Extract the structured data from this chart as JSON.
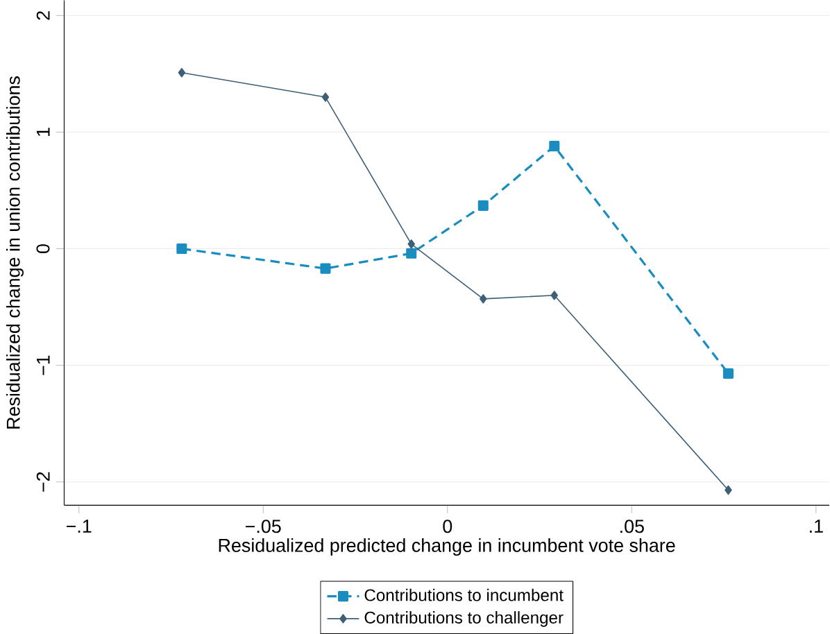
{
  "chart_data": {
    "type": "line",
    "xlabel": "Residualized predicted change in incumbent vote share",
    "ylabel": "Residualized change in union contributions",
    "x": [
      -0.0721,
      -0.0331,
      -0.0098,
      0.0097,
      0.029,
      0.0762
    ],
    "series": [
      {
        "name": "Contributions to incumbent",
        "color": "#1a8dc0",
        "line_style": "dashed",
        "marker": "square",
        "values": [
          0.0,
          -0.17,
          -0.04,
          0.37,
          0.88,
          -1.07
        ]
      },
      {
        "name": "Contributions to challenger",
        "color": "#3e5f78",
        "line_style": "solid",
        "marker": "diamond",
        "values": [
          1.51,
          1.3,
          0.04,
          -0.43,
          -0.4,
          -2.07
        ]
      }
    ],
    "xlim": [
      -0.104,
      0.1036
    ],
    "ylim": [
      -2.2,
      2.13
    ],
    "xticks": [
      {
        "value": -0.1,
        "label": "−.1"
      },
      {
        "value": -0.05,
        "label": "−.05"
      },
      0,
      {
        "value": 0.05,
        "label": ".05"
      },
      {
        "value": 0.1,
        "label": ".1"
      }
    ],
    "yticks": [
      {
        "value": -2,
        "label": "−2"
      },
      {
        "value": -1,
        "label": "−1"
      },
      0,
      1,
      2
    ],
    "grid": "y",
    "legend": "bottom"
  }
}
